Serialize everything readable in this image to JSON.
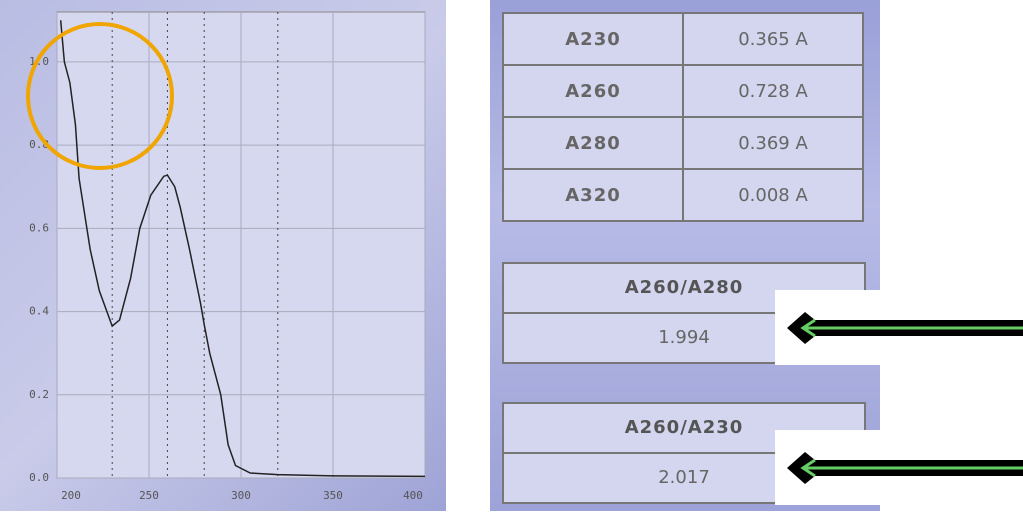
{
  "chart_data": {
    "type": "line",
    "x": [
      202,
      204,
      207,
      210,
      212,
      218,
      223,
      230,
      234,
      240,
      245,
      251,
      258,
      260,
      264,
      267,
      272,
      278,
      280,
      283,
      289,
      293,
      297,
      305,
      320,
      350,
      400
    ],
    "series": [
      {
        "color": "#222",
        "values": [
          1.1,
          1.0,
          0.95,
          0.85,
          0.72,
          0.55,
          0.45,
          0.365,
          0.38,
          0.48,
          0.6,
          0.68,
          0.725,
          0.728,
          0.7,
          0.65,
          0.55,
          0.42,
          0.369,
          0.3,
          0.2,
          0.08,
          0.03,
          0.012,
          0.008,
          0.005,
          0.004
        ]
      }
    ],
    "xlim": [
      200,
      400
    ],
    "xticks": [
      200,
      250,
      300,
      350,
      400
    ],
    "ylim": [
      0,
      1.12
    ],
    "yticks": [
      {
        "value": 0,
        "label": "0.0"
      },
      0.2,
      0.4,
      0.6,
      0.8,
      {
        "value": 1,
        "label": "1.0"
      }
    ],
    "markers": [
      230,
      260,
      280,
      320
    ],
    "grid": true
  },
  "table": {
    "rows": [
      [
        "A230",
        "0.365 A"
      ],
      [
        "A260",
        "0.728 A"
      ],
      [
        "A280",
        "0.369 A"
      ],
      [
        "A320",
        "0.008 A"
      ]
    ]
  },
  "ratios": [
    {
      "label": "A260/A280",
      "value": "1.994"
    },
    {
      "label": "A260/A230",
      "value": "2.017"
    }
  ]
}
